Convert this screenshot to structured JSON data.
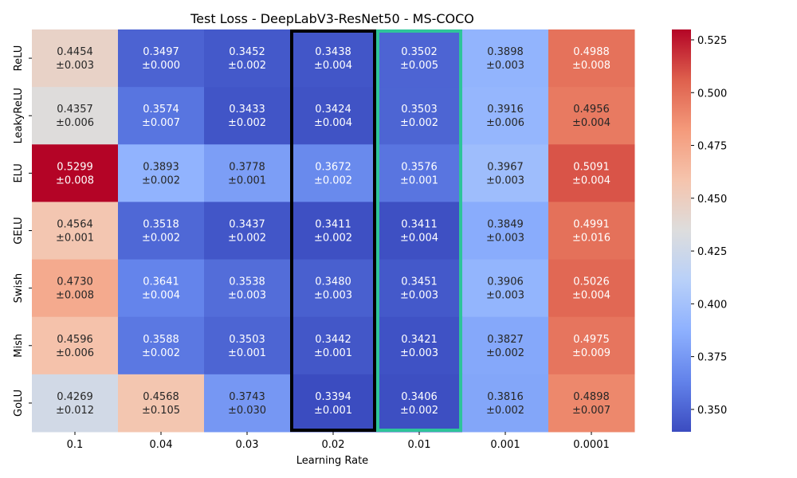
{
  "chart_data": {
    "type": "heatmap",
    "title": "Test Loss - DeepLabV3-ResNet50 - MS-COCO",
    "xlabel": "Learning Rate",
    "ylabel": "",
    "x_categories": [
      "0.1",
      "0.04",
      "0.03",
      "0.02",
      "0.01",
      "0.001",
      "0.0001"
    ],
    "y_categories": [
      "ReLU",
      "LeakyReLU",
      "ELU",
      "GELU",
      "Swish",
      "Mish",
      "GoLU"
    ],
    "values": [
      [
        0.4454,
        0.3497,
        0.3452,
        0.3438,
        0.3502,
        0.3898,
        0.4988
      ],
      [
        0.4357,
        0.3574,
        0.3433,
        0.3424,
        0.3503,
        0.3916,
        0.4956
      ],
      [
        0.5299,
        0.3893,
        0.3778,
        0.3672,
        0.3576,
        0.3967,
        0.5091
      ],
      [
        0.4564,
        0.3518,
        0.3437,
        0.3411,
        0.3411,
        0.3849,
        0.4991
      ],
      [
        0.473,
        0.3641,
        0.3538,
        0.348,
        0.3451,
        0.3906,
        0.5026
      ],
      [
        0.4596,
        0.3588,
        0.3503,
        0.3442,
        0.3421,
        0.3827,
        0.4975
      ],
      [
        0.4269,
        0.4568,
        0.3743,
        0.3394,
        0.3406,
        0.3816,
        0.4898
      ]
    ],
    "value_labels": [
      [
        "0.4454",
        "0.3497",
        "0.3452",
        "0.3438",
        "0.3502",
        "0.3898",
        "0.4988"
      ],
      [
        "0.4357",
        "0.3574",
        "0.3433",
        "0.3424",
        "0.3503",
        "0.3916",
        "0.4956"
      ],
      [
        "0.5299",
        "0.3893",
        "0.3778",
        "0.3672",
        "0.3576",
        "0.3967",
        "0.5091"
      ],
      [
        "0.4564",
        "0.3518",
        "0.3437",
        "0.3411",
        "0.3411",
        "0.3849",
        "0.4991"
      ],
      [
        "0.4730",
        "0.3641",
        "0.3538",
        "0.3480",
        "0.3451",
        "0.3906",
        "0.5026"
      ],
      [
        "0.4596",
        "0.3588",
        "0.3503",
        "0.3442",
        "0.3421",
        "0.3827",
        "0.4975"
      ],
      [
        "0.4269",
        "0.4568",
        "0.3743",
        "0.3394",
        "0.3406",
        "0.3816",
        "0.4898"
      ]
    ],
    "errors": [
      [
        "±0.003",
        "±0.000",
        "±0.002",
        "±0.004",
        "±0.005",
        "±0.003",
        "±0.008"
      ],
      [
        "±0.006",
        "±0.007",
        "±0.002",
        "±0.004",
        "±0.002",
        "±0.006",
        "±0.004"
      ],
      [
        "±0.008",
        "±0.002",
        "±0.001",
        "±0.002",
        "±0.001",
        "±0.003",
        "±0.004"
      ],
      [
        "±0.001",
        "±0.002",
        "±0.002",
        "±0.002",
        "±0.004",
        "±0.003",
        "±0.016"
      ],
      [
        "±0.008",
        "±0.004",
        "±0.003",
        "±0.003",
        "±0.003",
        "±0.003",
        "±0.004"
      ],
      [
        "±0.006",
        "±0.002",
        "±0.001",
        "±0.001",
        "±0.003",
        "±0.002",
        "±0.009"
      ],
      [
        "±0.012",
        "±0.105",
        "±0.030",
        "±0.001",
        "±0.002",
        "±0.002",
        "±0.007"
      ]
    ],
    "colormap": "coolwarm",
    "color_range": [
      0.3394,
      0.5299
    ],
    "colorbar_ticks": [
      0.35,
      0.375,
      0.4,
      0.425,
      0.45,
      0.475,
      0.5,
      0.525
    ],
    "colorbar_tick_labels": [
      "0.350",
      "0.375",
      "0.400",
      "0.425",
      "0.450",
      "0.475",
      "0.500",
      "0.525"
    ],
    "highlights": [
      {
        "column": "0.02",
        "color": "#000000"
      },
      {
        "column": "0.01",
        "color": "#2ec49a"
      }
    ]
  }
}
